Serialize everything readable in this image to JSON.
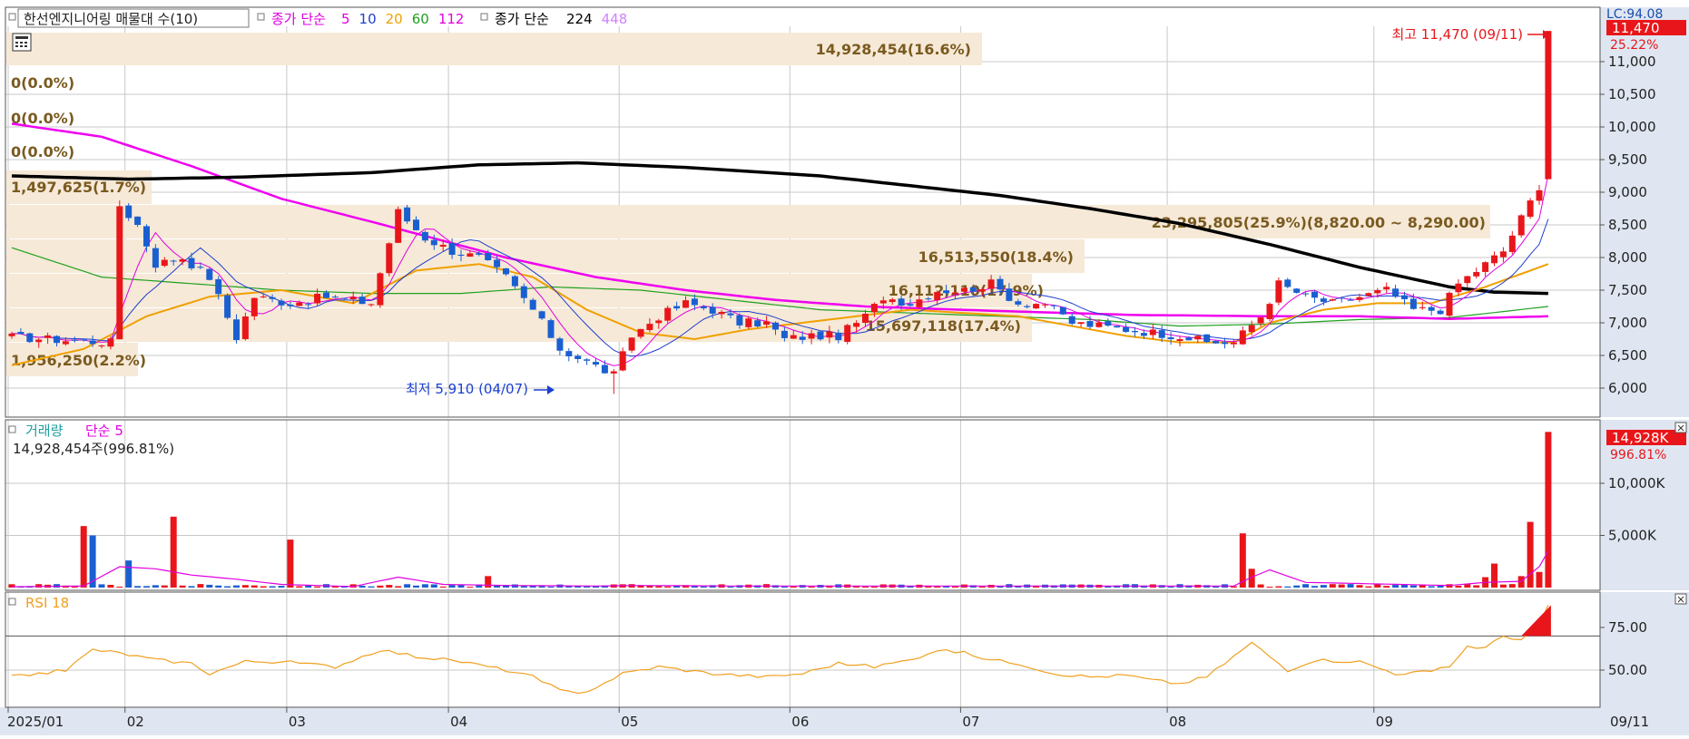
{
  "header": {
    "stock_label": "한선엔지니어링 매물대 수(10)",
    "ma_label": "종가 단순",
    "ma_periods": [
      "5",
      "10",
      "20",
      "60",
      "112"
    ],
    "ma_colors": [
      "#e000e0",
      "#1f3fcf",
      "#f0a000",
      "#20a020",
      "#e000e0"
    ],
    "ma2_label": "종가 단순",
    "ma2_periods": [
      "224",
      "448"
    ],
    "ma2_colors": [
      "#000000",
      "#d080ff"
    ]
  },
  "price_panel": {
    "y_ticks": [
      "11,000",
      "10,500",
      "10,000",
      "9,500",
      "9,000",
      "8,500",
      "8,000",
      "7,500",
      "7,000",
      "6,500",
      "6,000"
    ],
    "current_price_badge": "11,470",
    "change_pct": "25.22%",
    "lc_label": "LC:94.08",
    "high_annotation": "최고 11,470 (09/11)",
    "low_annotation": "최저 5,910 (04/07)",
    "volume_profile": [
      {
        "label": "14,928,454(16.6%)"
      },
      {
        "label": "0(0.0%)"
      },
      {
        "label": "0(0.0%)"
      },
      {
        "label": "0(0.0%)"
      },
      {
        "label": "1,497,625(1.7%)"
      },
      {
        "label": "23,295,805(25.9%)(8,820.00 ~ 8,290.00)"
      },
      {
        "label": "16,513,550(18.4%)"
      },
      {
        "label": "16,112,110(17.9%)"
      },
      {
        "label": "15,697,118(17.4%)"
      },
      {
        "label": "1,956,250(2.2%)"
      }
    ]
  },
  "volume_panel": {
    "title": "거래량",
    "ma_label": "단순 5",
    "info": "14,928,454주(996.81%)",
    "y_ticks": [
      "10,000K",
      "5,000K"
    ],
    "badge": "14,928K",
    "badge_pct": "996.81%"
  },
  "rsi_panel": {
    "title": "RSI 18",
    "y_ticks": [
      "75.00",
      "50.00"
    ]
  },
  "x_axis": {
    "labels": [
      "2025/01",
      "02",
      "03",
      "04",
      "05",
      "06",
      "07",
      "08",
      "09"
    ],
    "last_date": "09/11"
  },
  "colors": {
    "up": "#e8161a",
    "down": "#1a5fd0",
    "profile": "#f6e9d7",
    "profile_text": "#7a5a20",
    "axis_bg": "#dfe6f1",
    "ma224": "#000000",
    "ma112": "#f000f0",
    "ma5": "#e000e0",
    "ma10": "#1f3fcf",
    "ma20": "#f0a000",
    "ma60": "#20a020",
    "rsi": "#f0a020",
    "high_text": "#e8161a",
    "low_text": "#1a3fd0"
  },
  "chart_data": {
    "type": "candlestick",
    "x_start": "2025-01-02",
    "x_end": "2025-09-11",
    "price_range": [
      5700,
      11800
    ],
    "high": {
      "value": 11470,
      "date": "09/11"
    },
    "low": {
      "value": 5910,
      "date": "04/07"
    },
    "last_close": 11470,
    "month_labels": [
      "2025/01",
      "02",
      "03",
      "04",
      "05",
      "06",
      "07",
      "08",
      "09"
    ],
    "price_knots": [
      [
        0,
        6780
      ],
      [
        8,
        6720
      ],
      [
        11,
        6700
      ],
      [
        12,
        8800
      ],
      [
        14,
        8500
      ],
      [
        16,
        7900
      ],
      [
        19,
        8000
      ],
      [
        22,
        7700
      ],
      [
        25,
        6780
      ],
      [
        27,
        7400
      ],
      [
        31,
        7300
      ],
      [
        35,
        7400
      ],
      [
        40,
        7300
      ],
      [
        43,
        8700
      ],
      [
        46,
        8300
      ],
      [
        49,
        8100
      ],
      [
        52,
        8000
      ],
      [
        55,
        7700
      ],
      [
        58,
        7200
      ],
      [
        61,
        6600
      ],
      [
        64,
        6400
      ],
      [
        67,
        6200
      ],
      [
        69,
        6800
      ],
      [
        72,
        7100
      ],
      [
        75,
        7300
      ],
      [
        78,
        7200
      ],
      [
        81,
        7000
      ],
      [
        84,
        7000
      ],
      [
        86,
        6750
      ],
      [
        89,
        6800
      ],
      [
        92,
        6800
      ],
      [
        95,
        7100
      ],
      [
        97,
        7400
      ],
      [
        100,
        7300
      ],
      [
        103,
        7500
      ],
      [
        106,
        7500
      ],
      [
        109,
        7600
      ],
      [
        112,
        7300
      ],
      [
        115,
        7300
      ],
      [
        118,
        7000
      ],
      [
        121,
        6950
      ],
      [
        124,
        6900
      ],
      [
        127,
        6850
      ],
      [
        130,
        6800
      ],
      [
        133,
        6700
      ],
      [
        136,
        6700
      ],
      [
        139,
        7100
      ],
      [
        141,
        7600
      ],
      [
        144,
        7400
      ],
      [
        147,
        7300
      ],
      [
        150,
        7400
      ],
      [
        153,
        7500
      ],
      [
        156,
        7200
      ],
      [
        159,
        7200
      ],
      [
        161,
        7600
      ],
      [
        164,
        7900
      ],
      [
        166,
        8100
      ],
      [
        168,
        8600
      ],
      [
        170,
        9100
      ],
      [
        171,
        11470
      ]
    ],
    "volume_ma5_knots": [
      [
        0,
        80
      ],
      [
        8,
        150
      ],
      [
        12,
        2000
      ],
      [
        16,
        1800
      ],
      [
        20,
        1200
      ],
      [
        25,
        800
      ],
      [
        30,
        300
      ],
      [
        38,
        100
      ],
      [
        43,
        1000
      ],
      [
        48,
        300
      ],
      [
        55,
        200
      ],
      [
        65,
        150
      ],
      [
        70,
        200
      ],
      [
        80,
        150
      ],
      [
        100,
        150
      ],
      [
        130,
        150
      ],
      [
        136,
        150
      ],
      [
        138,
        1000
      ],
      [
        140,
        1700
      ],
      [
        144,
        500
      ],
      [
        160,
        200
      ],
      [
        164,
        500
      ],
      [
        168,
        600
      ],
      [
        170,
        2000
      ],
      [
        171,
        3500
      ]
    ],
    "rsi_knots": [
      [
        0,
        46
      ],
      [
        6,
        50
      ],
      [
        9,
        62
      ],
      [
        12,
        60
      ],
      [
        16,
        56
      ],
      [
        20,
        54
      ],
      [
        22,
        48
      ],
      [
        26,
        55
      ],
      [
        30,
        55
      ],
      [
        36,
        52
      ],
      [
        41,
        62
      ],
      [
        45,
        58
      ],
      [
        50,
        55
      ],
      [
        55,
        50
      ],
      [
        58,
        46
      ],
      [
        61,
        38
      ],
      [
        63,
        36
      ],
      [
        65,
        40
      ],
      [
        68,
        48
      ],
      [
        72,
        52
      ],
      [
        78,
        48
      ],
      [
        84,
        46
      ],
      [
        88,
        48
      ],
      [
        92,
        54
      ],
      [
        96,
        52
      ],
      [
        100,
        56
      ],
      [
        103,
        62
      ],
      [
        106,
        60
      ],
      [
        109,
        56
      ],
      [
        112,
        54
      ],
      [
        116,
        48
      ],
      [
        120,
        46
      ],
      [
        124,
        47
      ],
      [
        127,
        44
      ],
      [
        130,
        42
      ],
      [
        133,
        46
      ],
      [
        136,
        58
      ],
      [
        138,
        66
      ],
      [
        142,
        50
      ],
      [
        145,
        56
      ],
      [
        150,
        55
      ],
      [
        154,
        48
      ],
      [
        158,
        49
      ],
      [
        160,
        52
      ],
      [
        162,
        64
      ],
      [
        164,
        63
      ],
      [
        166,
        70
      ],
      [
        168,
        68
      ],
      [
        170,
        76
      ],
      [
        171,
        88
      ]
    ],
    "ma224_knots": [
      [
        0,
        9250
      ],
      [
        13,
        9200
      ],
      [
        25,
        9230
      ],
      [
        40,
        9300
      ],
      [
        52,
        9420
      ],
      [
        63,
        9450
      ],
      [
        75,
        9380
      ],
      [
        90,
        9250
      ],
      [
        100,
        9100
      ],
      [
        110,
        8950
      ],
      [
        120,
        8750
      ],
      [
        130,
        8520
      ],
      [
        140,
        8200
      ],
      [
        150,
        7850
      ],
      [
        160,
        7550
      ],
      [
        165,
        7470
      ],
      [
        171,
        7450
      ]
    ],
    "ma112_knots": [
      [
        0,
        10050
      ],
      [
        10,
        9850
      ],
      [
        20,
        9400
      ],
      [
        30,
        8900
      ],
      [
        40,
        8550
      ],
      [
        55,
        8000
      ],
      [
        65,
        7700
      ],
      [
        75,
        7500
      ],
      [
        85,
        7350
      ],
      [
        95,
        7250
      ],
      [
        110,
        7180
      ],
      [
        125,
        7120
      ],
      [
        140,
        7100
      ],
      [
        150,
        7100
      ],
      [
        160,
        7060
      ],
      [
        171,
        7100
      ]
    ],
    "ma60_knots": [
      [
        0,
        8150
      ],
      [
        10,
        7700
      ],
      [
        20,
        7600
      ],
      [
        30,
        7500
      ],
      [
        40,
        7450
      ],
      [
        50,
        7450
      ],
      [
        60,
        7550
      ],
      [
        70,
        7500
      ],
      [
        80,
        7350
      ],
      [
        90,
        7200
      ],
      [
        100,
        7150
      ],
      [
        110,
        7100
      ],
      [
        120,
        7050
      ],
      [
        130,
        6950
      ],
      [
        140,
        6980
      ],
      [
        150,
        7050
      ],
      [
        160,
        7080
      ],
      [
        171,
        7250
      ]
    ],
    "ma20_knots": [
      [
        0,
        6350
      ],
      [
        8,
        6600
      ],
      [
        15,
        7100
      ],
      [
        22,
        7400
      ],
      [
        30,
        7500
      ],
      [
        38,
        7300
      ],
      [
        45,
        7800
      ],
      [
        52,
        7900
      ],
      [
        58,
        7700
      ],
      [
        64,
        7200
      ],
      [
        70,
        6850
      ],
      [
        76,
        6750
      ],
      [
        82,
        6900
      ],
      [
        88,
        7000
      ],
      [
        94,
        7100
      ],
      [
        100,
        7200
      ],
      [
        106,
        7150
      ],
      [
        112,
        7100
      ],
      [
        118,
        6950
      ],
      [
        124,
        6800
      ],
      [
        130,
        6700
      ],
      [
        136,
        6700
      ],
      [
        140,
        7000
      ],
      [
        146,
        7200
      ],
      [
        152,
        7300
      ],
      [
        158,
        7300
      ],
      [
        164,
        7550
      ],
      [
        171,
        7900
      ]
    ]
  }
}
